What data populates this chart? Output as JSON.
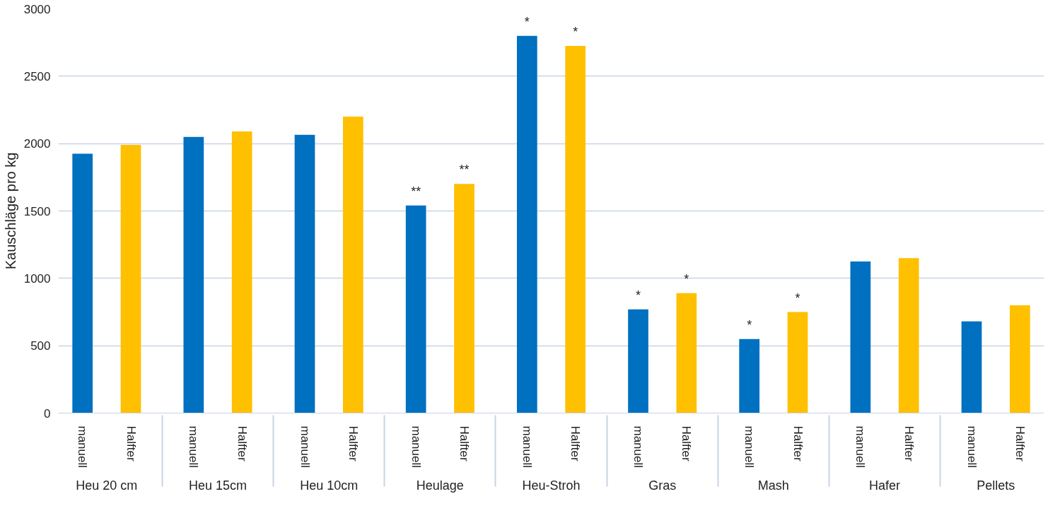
{
  "chart_data": {
    "type": "bar",
    "ylabel": "Kauschläge pro kg",
    "categories": [
      "Heu 20 cm",
      "Heu 15cm",
      "Heu 10cm",
      "Heulage",
      "Heu-Stroh",
      "Gras",
      "Mash",
      "Hafer",
      "Pellets"
    ],
    "series": [
      {
        "name": "manuell",
        "color": "#0070c0",
        "values": [
          1925,
          2050,
          2065,
          1540,
          2800,
          770,
          550,
          1125,
          680
        ],
        "value_labels": [
          null,
          null,
          null,
          "**",
          "*",
          "*",
          "*",
          null,
          null
        ]
      },
      {
        "name": "Halfter",
        "color": "#ffc000",
        "values": [
          1990,
          2090,
          2200,
          1700,
          2725,
          890,
          750,
          1150,
          800
        ],
        "value_labels": [
          null,
          null,
          null,
          "**",
          "*",
          "*",
          "*",
          null,
          null
        ]
      }
    ],
    "ylim": [
      0,
      3000
    ],
    "yticks": [
      0,
      500,
      1000,
      1500,
      2000,
      2500,
      3000
    ],
    "grid": "y"
  }
}
